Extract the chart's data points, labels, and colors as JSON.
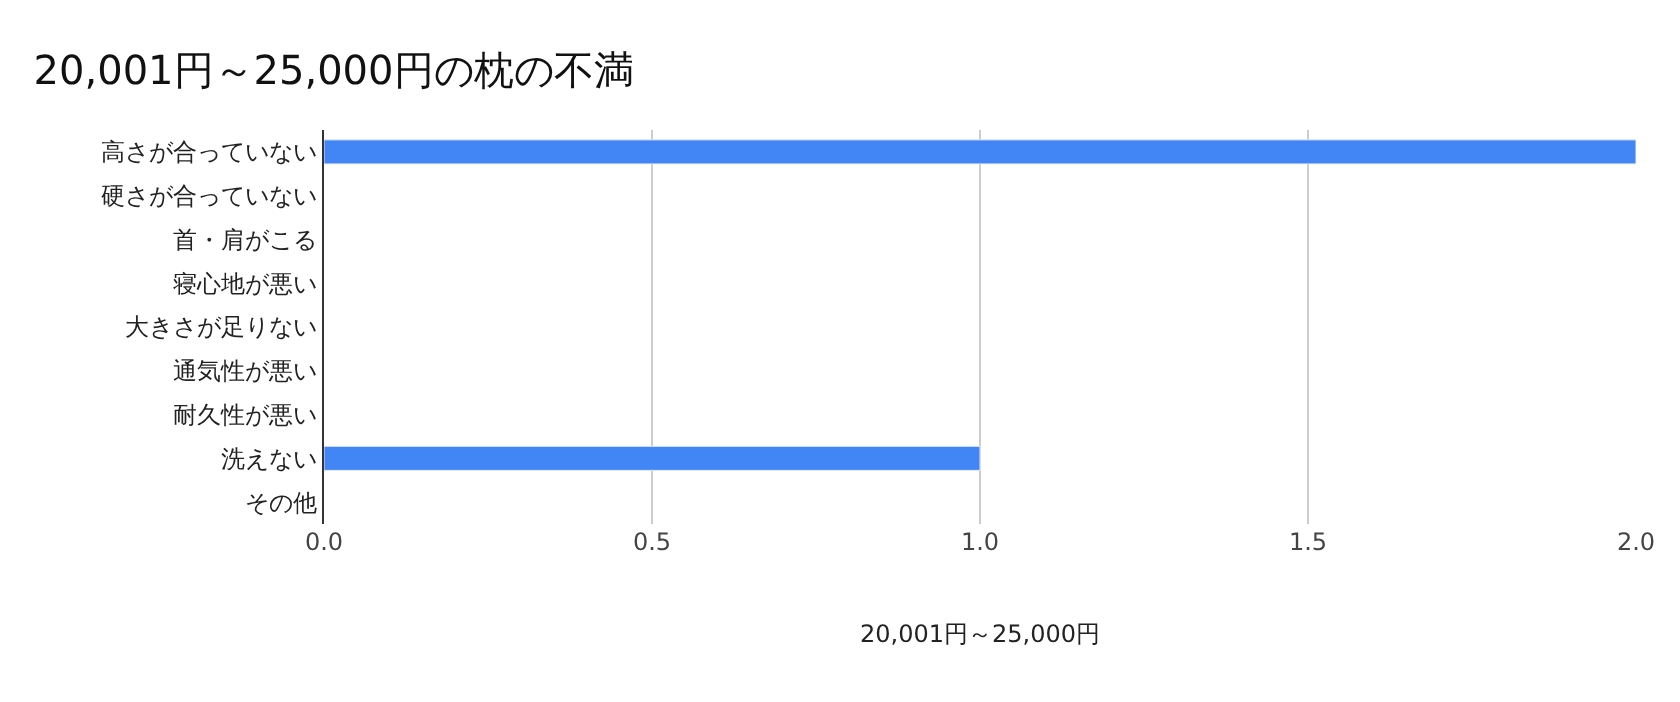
{
  "chart_data": {
    "type": "bar",
    "orientation": "horizontal",
    "title": "20,001円～25,000円の枕の不満",
    "xlabel": "20,001円～25,000円",
    "categories": [
      "高さが合っていない",
      "硬さが合っていない",
      "首・肩がこる",
      "寝心地が悪い",
      "大きさが足りない",
      "通気性が悪い",
      "耐久性が悪い",
      "洗えない",
      "その他"
    ],
    "series": [
      {
        "color": "#4285f4",
        "values": [
          2,
          null,
          null,
          null,
          null,
          null,
          null,
          1,
          null
        ]
      }
    ],
    "xlim": [
      0,
      2
    ],
    "xticks": [
      {
        "value": 0,
        "label": "0.0"
      },
      {
        "value": 0.5,
        "label": "0.5"
      },
      {
        "value": 1,
        "label": "1.0"
      },
      {
        "value": 1.5,
        "label": "1.5"
      },
      {
        "value": 2,
        "label": "2.0"
      }
    ],
    "grid": "x"
  }
}
